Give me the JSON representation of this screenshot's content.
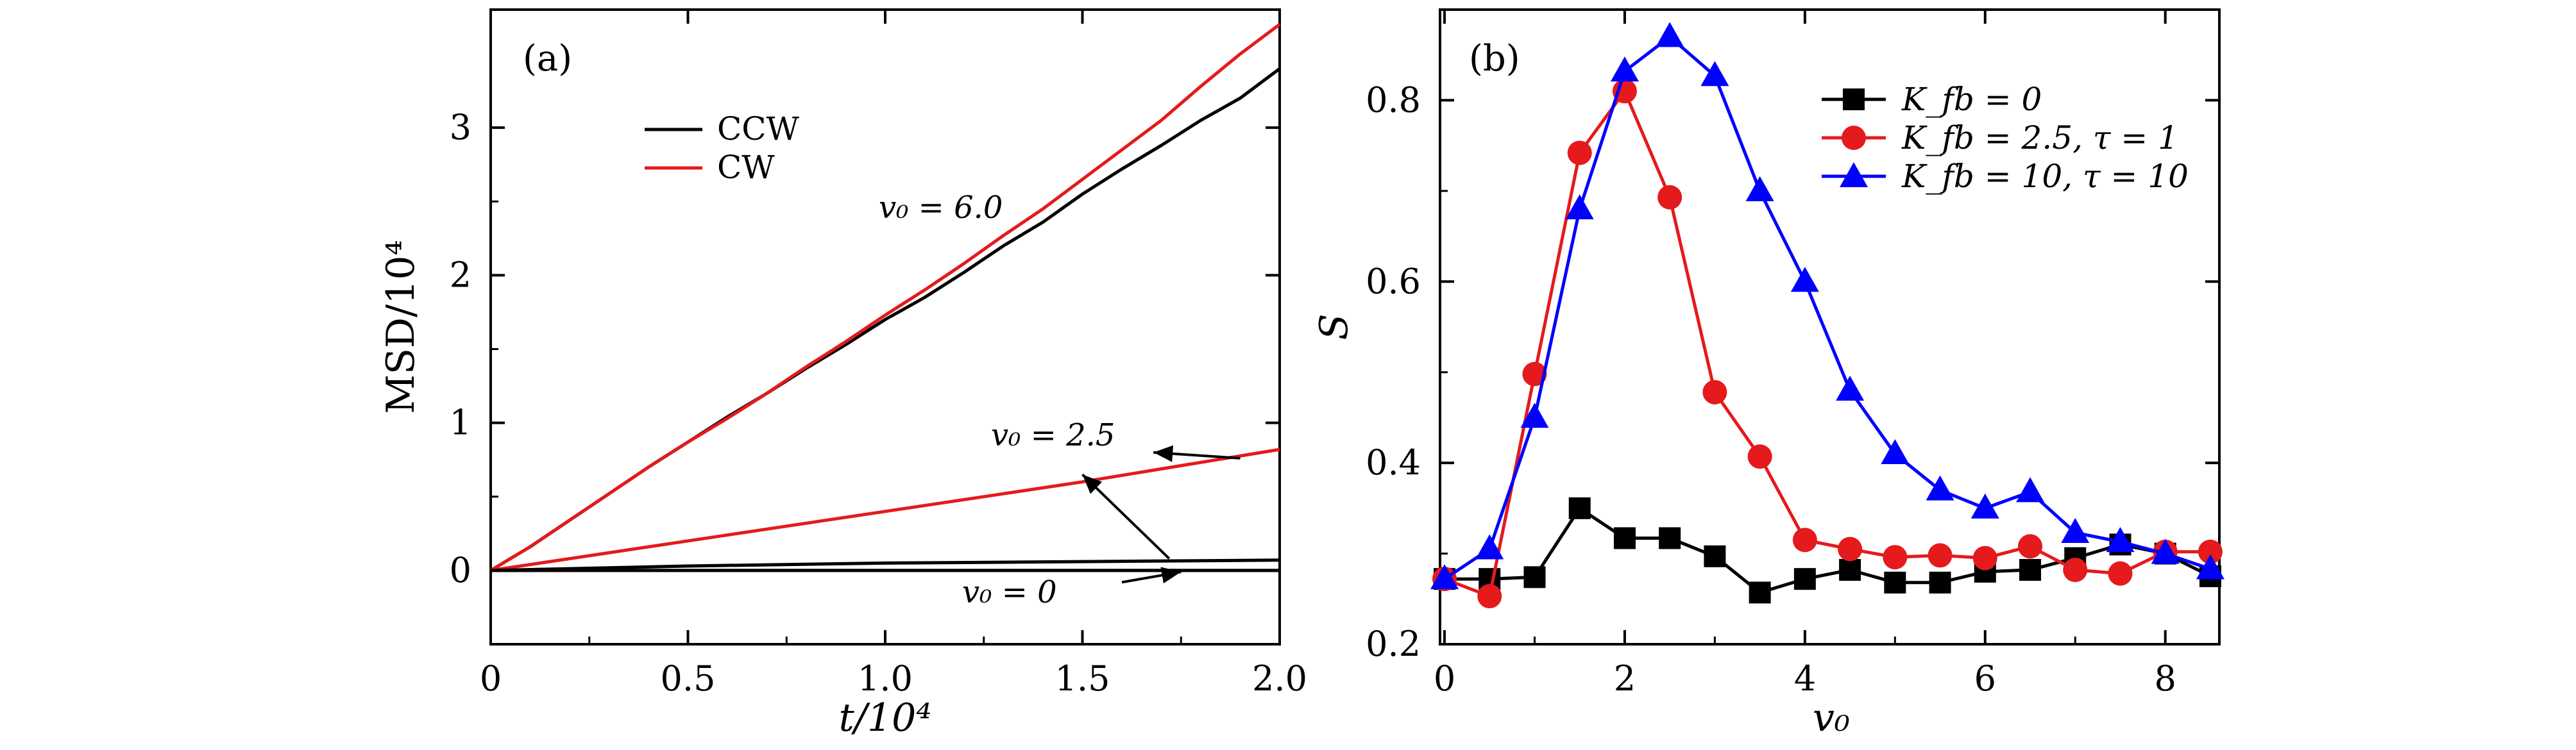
{
  "chart_data": [
    {
      "type": "line",
      "panel_label": "(a)",
      "xlabel": "t/10⁴",
      "ylabel": "MSD/10⁴",
      "xlim": [
        0,
        2.0
      ],
      "ylim": [
        -0.5,
        3.8
      ],
      "xticks": [
        0,
        0.5,
        1.0,
        1.5,
        2.0
      ],
      "xtick_labels": [
        "0",
        "0.5",
        "1.0",
        "1.5",
        "2.0"
      ],
      "yticks": [
        0,
        1,
        2,
        3
      ],
      "ytick_labels": [
        "0",
        "1",
        "2",
        "3"
      ],
      "legend": {
        "position": "top-center",
        "entries": [
          {
            "label": "CCW",
            "color": "#000000"
          },
          {
            "label": "CW",
            "color": "#e41a1c"
          }
        ]
      },
      "series": [
        {
          "name": "CCW v0=6.0",
          "color": "#000000",
          "x": [
            0,
            0.1,
            0.2,
            0.3,
            0.4,
            0.5,
            0.6,
            0.7,
            0.8,
            0.9,
            1.0,
            1.1,
            1.2,
            1.3,
            1.4,
            1.5,
            1.6,
            1.7,
            1.8,
            1.9,
            2.0
          ],
          "y": [
            0,
            0.16,
            0.34,
            0.52,
            0.7,
            0.87,
            1.04,
            1.2,
            1.37,
            1.53,
            1.7,
            1.85,
            2.02,
            2.2,
            2.36,
            2.55,
            2.72,
            2.88,
            3.05,
            3.2,
            3.4
          ]
        },
        {
          "name": "CW v0=6.0",
          "color": "#e41a1c",
          "x": [
            0,
            0.1,
            0.2,
            0.3,
            0.4,
            0.5,
            0.6,
            0.7,
            0.8,
            0.9,
            1.0,
            1.1,
            1.2,
            1.3,
            1.4,
            1.5,
            1.6,
            1.7,
            1.8,
            1.9,
            2.0
          ],
          "y": [
            0,
            0.16,
            0.34,
            0.52,
            0.7,
            0.87,
            1.03,
            1.2,
            1.38,
            1.55,
            1.73,
            1.9,
            2.08,
            2.27,
            2.45,
            2.65,
            2.85,
            3.05,
            3.28,
            3.5,
            3.7
          ]
        },
        {
          "name": "CW v0=2.5",
          "color": "#e41a1c",
          "x": [
            0,
            0.25,
            0.5,
            0.75,
            1.0,
            1.25,
            1.5,
            1.75,
            2.0
          ],
          "y": [
            0,
            0.1,
            0.2,
            0.3,
            0.4,
            0.5,
            0.6,
            0.71,
            0.82
          ]
        },
        {
          "name": "CCW v0=2.5",
          "color": "#000000",
          "x": [
            0,
            0.5,
            1.0,
            1.5,
            2.0
          ],
          "y": [
            0,
            0.03,
            0.05,
            0.06,
            0.07
          ]
        },
        {
          "name": "CW v0=0",
          "color": "#e41a1c",
          "x": [
            0,
            2.0
          ],
          "y": [
            0,
            0
          ]
        },
        {
          "name": "CCW v0=0",
          "color": "#000000",
          "x": [
            0,
            2.0
          ],
          "y": [
            0,
            0
          ]
        }
      ],
      "annotations": [
        {
          "text": "v₀ = 6.0",
          "x": 1.0,
          "y": 2.55
        },
        {
          "text": "v₀ = 2.5",
          "x": 1.55,
          "y": 0.85
        },
        {
          "text": "v₀ = 0",
          "x": 1.35,
          "y": -0.25
        }
      ]
    },
    {
      "type": "line",
      "panel_label": "(b)",
      "xlabel": "v₀",
      "ylabel": "S",
      "xlim": [
        -0.05,
        8.6
      ],
      "ylim": [
        0.2,
        0.9
      ],
      "xticks": [
        0,
        2,
        4,
        6,
        8
      ],
      "xtick_labels": [
        "0",
        "2",
        "4",
        "6",
        "8"
      ],
      "yticks": [
        0.2,
        0.4,
        0.6,
        0.8
      ],
      "ytick_labels": [
        "0.2",
        "0.4",
        "0.6",
        "0.8"
      ],
      "legend": {
        "position": "top-right",
        "entries": [
          {
            "label": "K_fb = 0",
            "color": "#000000",
            "marker": "square"
          },
          {
            "label": "K_fb = 2.5, τ = 1",
            "color": "#e41a1c",
            "marker": "circle"
          },
          {
            "label": "K_fb = 10, τ = 10",
            "color": "#0000ff",
            "marker": "triangle"
          }
        ]
      },
      "series": [
        {
          "name": "K_fb = 0",
          "color": "#000000",
          "marker": "square",
          "x": [
            0,
            0.5,
            1.0,
            1.5,
            2.0,
            2.5,
            3.0,
            3.5,
            4.0,
            4.5,
            5.0,
            5.5,
            6.0,
            6.5,
            7.0,
            7.5,
            8.0,
            8.5
          ],
          "y": [
            0.272,
            0.272,
            0.274,
            0.35,
            0.317,
            0.317,
            0.297,
            0.257,
            0.272,
            0.282,
            0.268,
            0.268,
            0.28,
            0.282,
            0.295,
            0.31,
            0.3,
            0.275
          ]
        },
        {
          "name": "K_fb = 2.5, τ = 1",
          "color": "#e41a1c",
          "marker": "circle",
          "x": [
            0,
            0.5,
            1.0,
            1.5,
            2.0,
            2.5,
            3.0,
            3.5,
            4.0,
            4.5,
            5.0,
            5.5,
            6.0,
            6.5,
            7.0,
            7.5,
            8.0,
            8.5
          ],
          "y": [
            0.272,
            0.253,
            0.498,
            0.742,
            0.81,
            0.693,
            0.478,
            0.407,
            0.315,
            0.305,
            0.296,
            0.298,
            0.295,
            0.308,
            0.282,
            0.278,
            0.302,
            0.302
          ]
        },
        {
          "name": "K_fb = 10, τ = 10",
          "color": "#0000ff",
          "marker": "triangle",
          "x": [
            0,
            0.5,
            1.0,
            1.5,
            2.0,
            2.5,
            3.0,
            3.5,
            4.0,
            4.5,
            5.0,
            5.5,
            6.0,
            6.5,
            7.0,
            7.5,
            8.0,
            8.5
          ],
          "y": [
            0.272,
            0.305,
            0.45,
            0.68,
            0.832,
            0.87,
            0.827,
            0.7,
            0.6,
            0.48,
            0.41,
            0.37,
            0.35,
            0.368,
            0.323,
            0.313,
            0.3,
            0.283
          ]
        }
      ]
    }
  ]
}
